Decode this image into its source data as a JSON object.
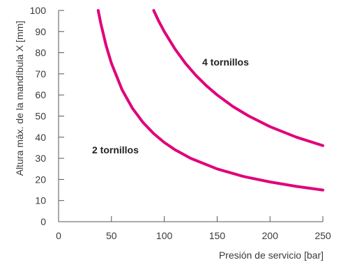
{
  "chart_data": {
    "type": "line",
    "xlabel": "Presión de servicio [bar]",
    "ylabel": "Altura máx. de la mandíbula X [mm]",
    "xlim": [
      0,
      250
    ],
    "ylim": [
      0,
      100
    ],
    "xticks": [
      0,
      50,
      100,
      150,
      200,
      250
    ],
    "yticks": [
      0,
      10,
      20,
      30,
      40,
      50,
      60,
      70,
      80,
      90,
      100
    ],
    "grid": false,
    "line_color": "#e0007a",
    "series": [
      {
        "name": "2 tornillos",
        "x": [
          37.5,
          40,
          45,
          50,
          60,
          70,
          80,
          90,
          100,
          110,
          125,
          150,
          175,
          200,
          225,
          250
        ],
        "values": [
          100,
          93.8,
          83.3,
          75,
          62.5,
          53.6,
          46.9,
          41.7,
          37.5,
          34.1,
          30,
          25,
          21.4,
          18.8,
          16.7,
          15
        ]
      },
      {
        "name": "4 tornillos",
        "x": [
          90,
          95,
          100,
          110,
          120,
          130,
          140,
          150,
          165,
          180,
          200,
          225,
          250
        ],
        "values": [
          100,
          94.7,
          90,
          81.8,
          75,
          69.2,
          64.3,
          60,
          54.5,
          50,
          45,
          40,
          36
        ]
      }
    ]
  }
}
